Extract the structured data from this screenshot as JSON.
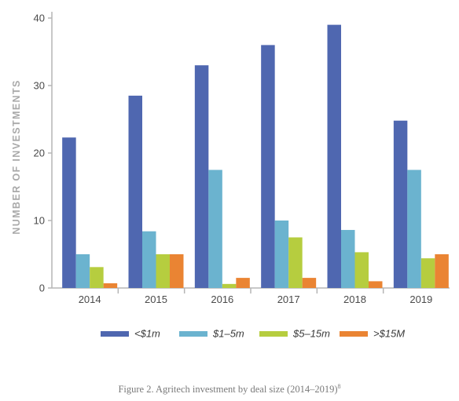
{
  "chart_data": {
    "type": "bar",
    "categories": [
      "2014",
      "2015",
      "2016",
      "2017",
      "2018",
      "2019"
    ],
    "series": [
      {
        "name": "<$1m",
        "color": "#4f67b0",
        "values": [
          22.3,
          28.5,
          33.0,
          36.0,
          39.0,
          24.8
        ]
      },
      {
        "name": "$1–5m",
        "color": "#6bb3cf",
        "values": [
          5.0,
          8.4,
          17.5,
          10.0,
          8.6,
          17.5
        ]
      },
      {
        "name": "$5–15m",
        "color": "#b6cd3f",
        "values": [
          3.1,
          5.0,
          0.6,
          7.5,
          5.3,
          4.4
        ]
      },
      {
        "name": ">$15M",
        "color": "#ea8433",
        "values": [
          0.7,
          5.0,
          1.5,
          1.5,
          1.0,
          5.0
        ]
      }
    ],
    "xlabel": "",
    "ylabel": "NUMBER OF INVESTMENTS",
    "ylim": [
      0,
      40
    ],
    "yticks": [
      0,
      10,
      20,
      30,
      40
    ],
    "grid": false,
    "legend_position": "bottom"
  },
  "caption": {
    "text": "Figure 2. Agritech investment by deal size (2014–2019)",
    "footnote_mark": "8"
  }
}
